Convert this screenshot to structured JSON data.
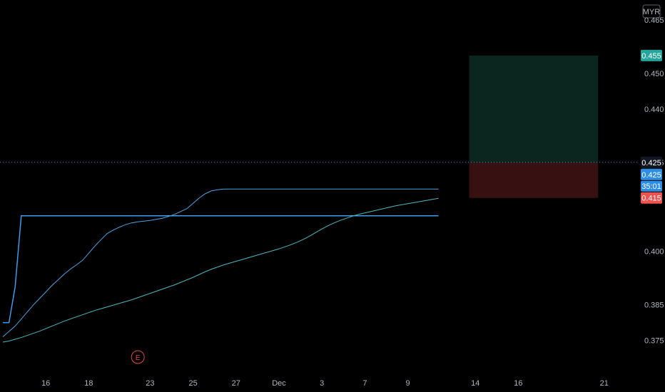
{
  "chart_data": {
    "type": "line",
    "currency": "MYR",
    "ylim": [
      0.3665,
      0.4706
    ],
    "y_ticks": [
      "0.465",
      "0.450",
      "0.440",
      "0.425",
      "0.400",
      "0.385",
      "0.375"
    ],
    "y_tick_values": [
      0.465,
      0.45,
      0.44,
      0.425,
      0.4,
      0.385,
      0.375
    ],
    "x_ticks": [
      {
        "label": "16",
        "i": 7
      },
      {
        "label": "18",
        "i": 14
      },
      {
        "label": "23",
        "i": 24
      },
      {
        "label": "25",
        "i": 31
      },
      {
        "label": "27",
        "i": 38
      },
      {
        "label": "Dec",
        "i": 45
      },
      {
        "label": "3",
        "i": 52
      },
      {
        "label": "7",
        "i": 59
      },
      {
        "label": "9",
        "i": 66
      },
      {
        "label": "14",
        "i": 77
      },
      {
        "label": "16",
        "i": 84
      },
      {
        "label": "21",
        "i": 98
      }
    ],
    "series": [
      {
        "role": "price",
        "color": "#3d9be9",
        "values": [
          0.38,
          0.38,
          0.39,
          0.41,
          0.41,
          0.41,
          0.41,
          0.41,
          0.41,
          0.41,
          0.41,
          0.41,
          0.41,
          0.41,
          0.41,
          0.41,
          0.41,
          0.41,
          0.41,
          0.41,
          0.41,
          0.41,
          0.41,
          0.41,
          0.41,
          0.41,
          0.41,
          0.41,
          0.41,
          0.41,
          0.41,
          0.41,
          0.41,
          0.41,
          0.41,
          0.41,
          0.41,
          0.41,
          0.41,
          0.41,
          0.41,
          0.41,
          0.41,
          0.41,
          0.41,
          0.41,
          0.41,
          0.41,
          0.41,
          0.41,
          0.41,
          0.41,
          0.41,
          0.41,
          0.41,
          0.41,
          0.41,
          0.41,
          0.41,
          0.41,
          0.41,
          0.41,
          0.41,
          0.41,
          0.41,
          0.41,
          0.41,
          0.41,
          0.41,
          0.41,
          0.41,
          0.41
        ]
      },
      {
        "role": "moving-average-fast",
        "color": "#4fa3e0",
        "values": [
          0.376,
          0.3775,
          0.379,
          0.381,
          0.383,
          0.385,
          0.3868,
          0.3886,
          0.3904,
          0.392,
          0.3936,
          0.395,
          0.3962,
          0.3975,
          0.3995,
          0.4015,
          0.4033,
          0.405,
          0.406,
          0.4068,
          0.4075,
          0.408,
          0.4083,
          0.4085,
          0.4087,
          0.409,
          0.4093,
          0.4098,
          0.4104,
          0.4112,
          0.412,
          0.4135,
          0.415,
          0.4162,
          0.417,
          0.4173,
          0.4175,
          0.4175,
          0.4175,
          0.4175,
          0.4175,
          0.4175,
          0.4175,
          0.4175,
          0.4175,
          0.4175,
          0.4175,
          0.4175,
          0.4175,
          0.4175,
          0.4175,
          0.4175,
          0.4175,
          0.4175,
          0.4175,
          0.4175,
          0.4175,
          0.4175,
          0.4175,
          0.4175,
          0.4175,
          0.4175,
          0.4175,
          0.4175,
          0.4175,
          0.4175,
          0.4175,
          0.4175,
          0.4175,
          0.4175,
          0.4175,
          0.4175
        ]
      },
      {
        "role": "moving-average-slow",
        "color": "#4db6c0",
        "values": [
          0.3745,
          0.3748,
          0.3753,
          0.3758,
          0.3764,
          0.377,
          0.3776,
          0.3783,
          0.379,
          0.3797,
          0.3804,
          0.381,
          0.3816,
          0.3822,
          0.3828,
          0.3834,
          0.3839,
          0.3844,
          0.3849,
          0.3854,
          0.3859,
          0.3864,
          0.387,
          0.3876,
          0.3882,
          0.3888,
          0.3894,
          0.39,
          0.3906,
          0.3913,
          0.392,
          0.3927,
          0.3935,
          0.3943,
          0.395,
          0.3956,
          0.3962,
          0.3967,
          0.3972,
          0.3977,
          0.3982,
          0.3987,
          0.3992,
          0.3997,
          0.4002,
          0.4007,
          0.4013,
          0.4019,
          0.4026,
          0.4034,
          0.4043,
          0.4053,
          0.4063,
          0.4072,
          0.408,
          0.4087,
          0.4093,
          0.4099,
          0.4104,
          0.4108,
          0.4112,
          0.4116,
          0.412,
          0.4124,
          0.4128,
          0.4131,
          0.4134,
          0.4137,
          0.414,
          0.4143,
          0.4146,
          0.4149
        ]
      }
    ],
    "position": {
      "entry": 0.425,
      "target": 0.455,
      "stop": 0.415,
      "start_i": 76,
      "end_i": 97
    },
    "labels": {
      "target": "0.455",
      "last": "0.425",
      "entry": "0.425",
      "countdown": "35:01",
      "stop": "0.415"
    },
    "earnings_marker": {
      "letter": "E",
      "i": 22
    }
  }
}
